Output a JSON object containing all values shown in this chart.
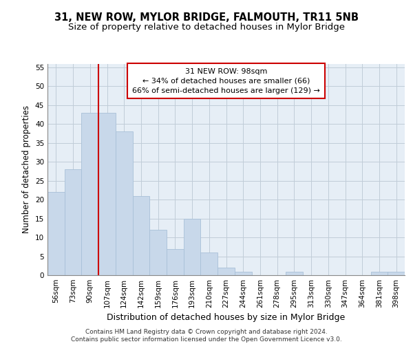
{
  "title": "31, NEW ROW, MYLOR BRIDGE, FALMOUTH, TR11 5NB",
  "subtitle": "Size of property relative to detached houses in Mylor Bridge",
  "xlabel": "Distribution of detached houses by size in Mylor Bridge",
  "ylabel": "Number of detached properties",
  "categories": [
    "56sqm",
    "73sqm",
    "90sqm",
    "107sqm",
    "124sqm",
    "142sqm",
    "159sqm",
    "176sqm",
    "193sqm",
    "210sqm",
    "227sqm",
    "244sqm",
    "261sqm",
    "278sqm",
    "295sqm",
    "313sqm",
    "330sqm",
    "347sqm",
    "364sqm",
    "381sqm",
    "398sqm"
  ],
  "values": [
    22,
    28,
    43,
    43,
    38,
    21,
    12,
    7,
    15,
    6,
    2,
    1,
    0,
    0,
    1,
    0,
    0,
    0,
    0,
    1,
    1
  ],
  "bar_color": "#c8d8ea",
  "bar_edge_color": "#a8c0d8",
  "vline_x": 2.5,
  "vline_color": "#cc0000",
  "annotation_text": "31 NEW ROW: 98sqm\n← 34% of detached houses are smaller (66)\n66% of semi-detached houses are larger (129) →",
  "annotation_box_color": "#ffffff",
  "annotation_box_edge": "#cc0000",
  "ylim": [
    0,
    56
  ],
  "yticks": [
    0,
    5,
    10,
    15,
    20,
    25,
    30,
    35,
    40,
    45,
    50,
    55
  ],
  "footer_text": "Contains HM Land Registry data © Crown copyright and database right 2024.\nContains public sector information licensed under the Open Government Licence v3.0.",
  "bg_color": "#ffffff",
  "grid_color": "#c0ccd8",
  "title_fontsize": 10.5,
  "subtitle_fontsize": 9.5,
  "xlabel_fontsize": 9,
  "ylabel_fontsize": 8.5,
  "tick_fontsize": 7.5,
  "annotation_fontsize": 8,
  "footer_fontsize": 6.5
}
